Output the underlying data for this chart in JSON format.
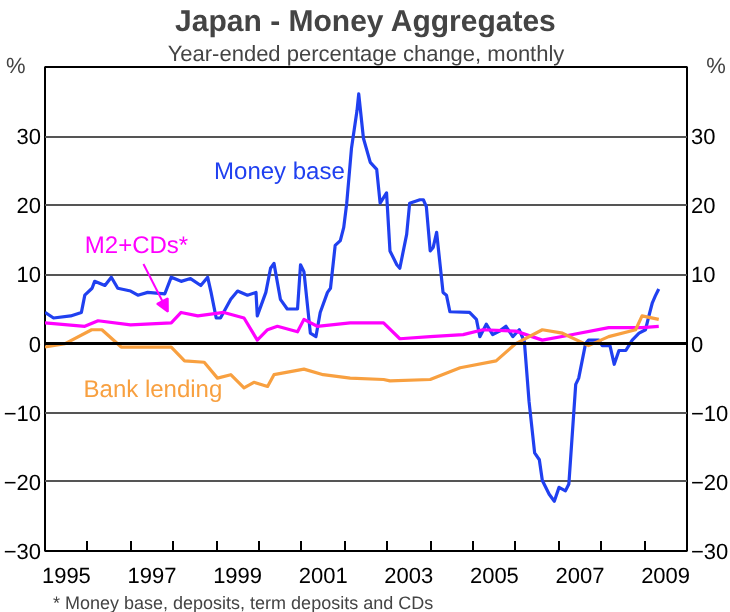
{
  "chart_data": {
    "type": "line",
    "title": "Japan - Money Aggregates",
    "subtitle": "Year-ended percentage change, monthly",
    "ylabel": "%",
    "y2label": "%",
    "xlim": [
      1995,
      2010
    ],
    "xticks": [
      {
        "value": 1995.5,
        "label": "1995"
      },
      {
        "value": 1997.5,
        "label": "1997"
      },
      {
        "value": 1999.5,
        "label": "1999"
      },
      {
        "value": 2001.5,
        "label": "2001"
      },
      {
        "value": 2003.5,
        "label": "2003"
      },
      {
        "value": 2005.5,
        "label": "2005"
      },
      {
        "value": 2007.5,
        "label": "2007"
      },
      {
        "value": 2009.5,
        "label": "2009"
      },
      {
        "value": 1996,
        "label": null
      },
      {
        "value": 1997,
        "label": null
      },
      {
        "value": 1998,
        "label": null
      },
      {
        "value": 1999,
        "label": null
      },
      {
        "value": 2000,
        "label": null
      },
      {
        "value": 2001,
        "label": null
      },
      {
        "value": 2002,
        "label": null
      },
      {
        "value": 2003,
        "label": null
      },
      {
        "value": 2004,
        "label": null
      },
      {
        "value": 2005,
        "label": null
      },
      {
        "value": 2006,
        "label": null
      },
      {
        "value": 2007,
        "label": null
      },
      {
        "value": 2008,
        "label": null
      },
      {
        "value": 2009,
        "label": null
      }
    ],
    "ylim": [
      -30,
      40
    ],
    "yticks": [
      -30,
      -20,
      -10,
      0,
      10,
      20,
      30
    ],
    "y2lim": [
      -30,
      40
    ],
    "y2ticks": [
      -30,
      -20,
      -10,
      0,
      10,
      20,
      30
    ],
    "grid": "y",
    "legend": false,
    "ref_lines": [
      {
        "axis": "y",
        "value": 0,
        "color": "#000000"
      }
    ],
    "series": [
      {
        "name": "Money base",
        "color": "#2040f0",
        "x": [
          1995.0,
          1995.2,
          1995.6,
          1995.85,
          1995.93,
          1996.1,
          1996.16,
          1996.4,
          1996.55,
          1996.7,
          1997.0,
          1997.17,
          1997.4,
          1997.8,
          1997.95,
          1998.18,
          1998.4,
          1998.64,
          1998.8,
          1998.88,
          1999.0,
          1999.1,
          1999.34,
          1999.5,
          1999.73,
          1999.93,
          1999.96,
          2000.16,
          2000.27,
          2000.35,
          2000.5,
          2000.66,
          2000.9,
          2000.97,
          2001.05,
          2001.2,
          2001.33,
          2001.43,
          2001.6,
          2001.67,
          2001.78,
          2001.9,
          2001.98,
          2002.05,
          2002.16,
          2002.29,
          2002.33,
          2002.44,
          2002.6,
          2002.75,
          2002.83,
          2002.98,
          2003.06,
          2003.22,
          2003.29,
          2003.45,
          2003.52,
          2003.76,
          2003.84,
          2003.91,
          2004.0,
          2004.07,
          2004.15,
          2004.3,
          2004.38,
          2004.46,
          2004.92,
          2005.08,
          2005.16,
          2005.31,
          2005.46,
          2005.62,
          2005.77,
          2005.93,
          2006.08,
          2006.2,
          2006.31,
          2006.44,
          2006.55,
          2006.62,
          2006.78,
          2006.9,
          2007.01,
          2007.16,
          2007.24,
          2007.4,
          2007.47,
          2007.63,
          2007.7,
          2007.94,
          2008.02,
          2008.2,
          2008.3,
          2008.41,
          2008.57,
          2008.72,
          2008.88,
          2009.03,
          2009.11,
          2009.19,
          2009.26,
          2009.34
        ],
        "values": [
          4.5,
          3.7,
          4,
          4.5,
          7,
          8,
          9,
          8.4,
          9.6,
          8,
          7.6,
          7,
          7.4,
          7.2,
          9.6,
          9,
          9.4,
          8.4,
          9.6,
          7.4,
          3.7,
          3.7,
          6.4,
          7.6,
          7,
          7.4,
          4,
          7.4,
          10.9,
          11.6,
          6.4,
          5,
          5,
          11.4,
          10.4,
          1.5,
          1,
          4.5,
          7.4,
          8,
          14.2,
          14.9,
          16.8,
          20.3,
          28.2,
          33.7,
          36.1,
          29.7,
          26.2,
          25.2,
          20.3,
          21.8,
          13.4,
          11.4,
          10.9,
          15.8,
          20.3,
          20.8,
          20.8,
          19.8,
          13.4,
          13.9,
          16.1,
          7.4,
          7,
          4.6,
          4.5,
          3.5,
          1,
          2.8,
          1.3,
          1.8,
          2.5,
          1,
          2,
          0.3,
          -8.4,
          -15.8,
          -16.8,
          -19.8,
          -21.8,
          -22.8,
          -20.8,
          -21.3,
          -20.3,
          -5.9,
          -5,
          0,
          0.5,
          0.5,
          -0.3,
          -0.3,
          -3,
          -1,
          -1,
          0.5,
          1.5,
          2,
          4,
          5.9,
          6.9,
          7.9
        ]
      },
      {
        "name": "M2+CDs*",
        "color": "#ff00ff",
        "x": [
          1995.0,
          1995.93,
          1996.24,
          1997.0,
          1997.95,
          1998.18,
          1998.57,
          1999.18,
          1999.65,
          1999.96,
          2000.2,
          2000.43,
          2000.9,
          2001.05,
          2001.36,
          2002.13,
          2002.91,
          2003.29,
          2004.0,
          2004.77,
          2005.23,
          2006.0,
          2006.62,
          2007.24,
          2008.17,
          2008.95,
          2009.34
        ],
        "values": [
          3,
          2.5,
          3.3,
          2.7,
          3,
          4.5,
          4,
          4.5,
          3.7,
          0.5,
          2,
          2.5,
          1.7,
          3.5,
          2.5,
          3,
          3,
          0.7,
          1,
          1.3,
          2,
          1.8,
          0.5,
          1.2,
          2.3,
          2.3,
          2.5
        ]
      },
      {
        "name": "Bank lending",
        "color": "#f8a040",
        "x": [
          1995.0,
          1995.47,
          1996.09,
          1996.33,
          1996.78,
          1997.95,
          1998.26,
          1998.72,
          1999.03,
          1999.34,
          1999.65,
          1999.88,
          2000.2,
          2000.35,
          2001.05,
          2001.5,
          2002.13,
          2002.91,
          2003.06,
          2004.0,
          2004.7,
          2005.54,
          2006.0,
          2006.62,
          2007.09,
          2007.7,
          2008.17,
          2008.8,
          2008.95,
          2009.34
        ],
        "values": [
          -0.5,
          0,
          2,
          2,
          -0.5,
          -0.5,
          -2.5,
          -2.7,
          -5,
          -4.5,
          -6.4,
          -5.6,
          -6.2,
          -4.5,
          -3.7,
          -4.5,
          -5,
          -5.2,
          -5.4,
          -5.2,
          -3.5,
          -2.5,
          0,
          2,
          1.5,
          -0.3,
          1,
          2,
          4,
          3.5
        ]
      }
    ],
    "annotations": [
      "* Money base, deposits, term deposits and CDs"
    ]
  }
}
